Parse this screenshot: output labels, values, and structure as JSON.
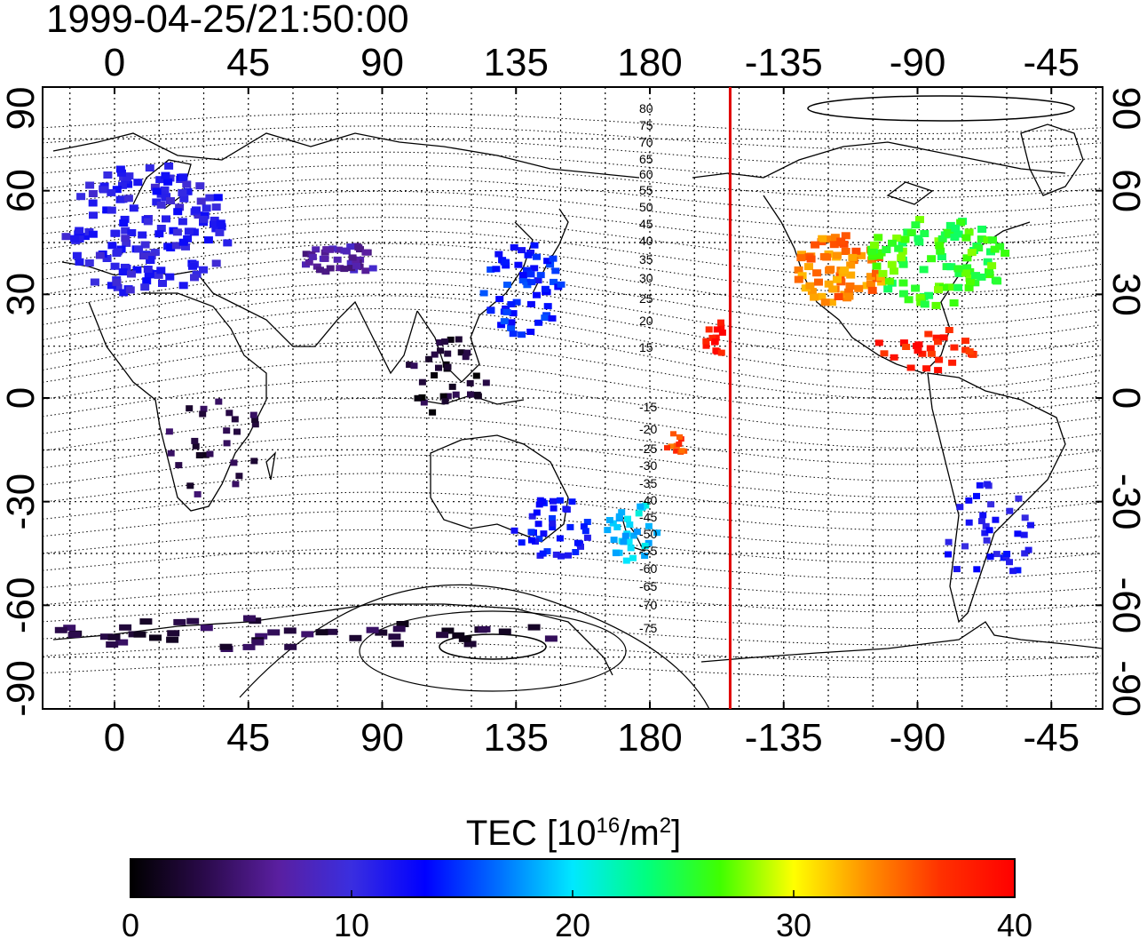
{
  "header": {
    "timestamp": "1999-04-25/21:50:00"
  },
  "map": {
    "lon_ticks": [
      "0",
      "45",
      "90",
      "135",
      "180",
      "-135",
      "-90",
      "-45"
    ],
    "lat_ticks": [
      "90",
      "60",
      "30",
      "0",
      "-30",
      "-60",
      "-90"
    ],
    "mlat_labels": [
      "80",
      "75",
      "70",
      "65",
      "60",
      "55",
      "50",
      "45",
      "40",
      "35",
      "30",
      "25",
      "20",
      "15",
      "-15",
      "-20",
      "-25",
      "-30",
      "-35",
      "-40",
      "-45",
      "-50",
      "-55",
      "-60",
      "-65",
      "-70",
      "-75"
    ],
    "terminator_lon": -153,
    "colors": {
      "terminator": "#e00000",
      "coast": "#000000",
      "contour": "#000000"
    },
    "tec_regions": [
      {
        "region": "europe",
        "tec": 11
      },
      {
        "region": "east-asia-japan",
        "tec": 14
      },
      {
        "region": "north-america-west",
        "tec": 34
      },
      {
        "region": "north-america-east",
        "tec": 26
      },
      {
        "region": "caribbean",
        "tec": 38
      },
      {
        "region": "hawaii",
        "tec": 39
      },
      {
        "region": "australia-se",
        "tec": 13
      },
      {
        "region": "new-zealand",
        "tec": 19
      },
      {
        "region": "south-pacific-islands",
        "tec": 36
      },
      {
        "region": "south-america-east",
        "tec": 12
      },
      {
        "region": "antarctica",
        "tec": 3
      },
      {
        "region": "africa",
        "tec": 3
      },
      {
        "region": "central-asia",
        "tec": 7
      },
      {
        "region": "southeast-asia",
        "tec": 2
      }
    ]
  },
  "colorbar": {
    "title_prefix": "TEC  [10",
    "title_exp": "16",
    "title_mid": "/m",
    "title_exp2": "2",
    "title_suffix": "]",
    "ticks": [
      "0",
      "10",
      "20",
      "30",
      "40"
    ],
    "range": [
      0,
      40
    ],
    "stops": [
      "#000000",
      "#2a0a4a",
      "#5a1fa0",
      "#3a2ee0",
      "#0000ff",
      "#0070ff",
      "#00e8ff",
      "#00ff80",
      "#40ff00",
      "#ffff00",
      "#ff9000",
      "#ff3000",
      "#ff0000"
    ]
  }
}
